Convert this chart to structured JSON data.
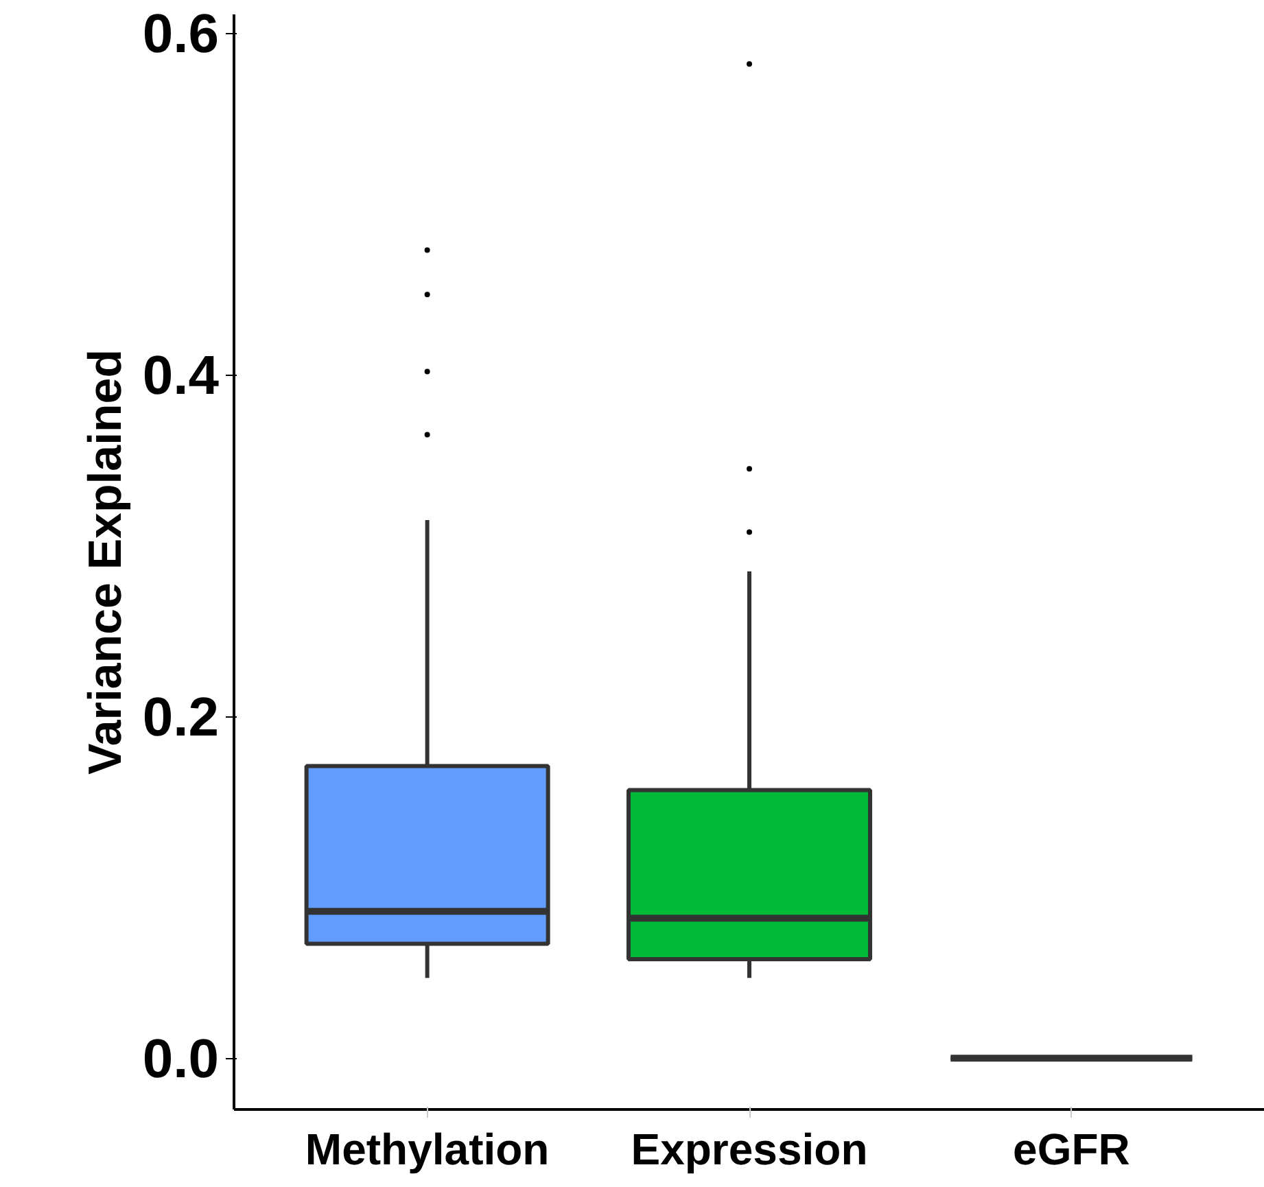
{
  "chart_data": {
    "type": "box",
    "ylabel": "Variance Explained",
    "categories": [
      "Methylation",
      "Expression",
      "eGFR"
    ],
    "colors": [
      "#619cff",
      "#00ba38",
      "#333333"
    ],
    "boxes": [
      {
        "low": 0.047,
        "q1": 0.067,
        "median": 0.086,
        "q3": 0.171,
        "high": 0.315,
        "outliers": [
          0.365,
          0.402,
          0.447,
          0.473
        ]
      },
      {
        "low": 0.047,
        "q1": 0.058,
        "median": 0.082,
        "q3": 0.157,
        "high": 0.285,
        "outliers": [
          0.308,
          0.345,
          0.582
        ]
      },
      {
        "low": 0.0,
        "q1": 0.0,
        "median": 0.0,
        "q3": 0.0,
        "high": 0.0
      }
    ],
    "ylim": [
      -0.03,
      0.611
    ],
    "yticks": [
      {
        "value": 0,
        "label": "0.0"
      },
      {
        "value": 0.2,
        "label": "0.2"
      },
      {
        "value": 0.4,
        "label": "0.4"
      },
      {
        "value": 0.6,
        "label": "0.6"
      }
    ]
  }
}
